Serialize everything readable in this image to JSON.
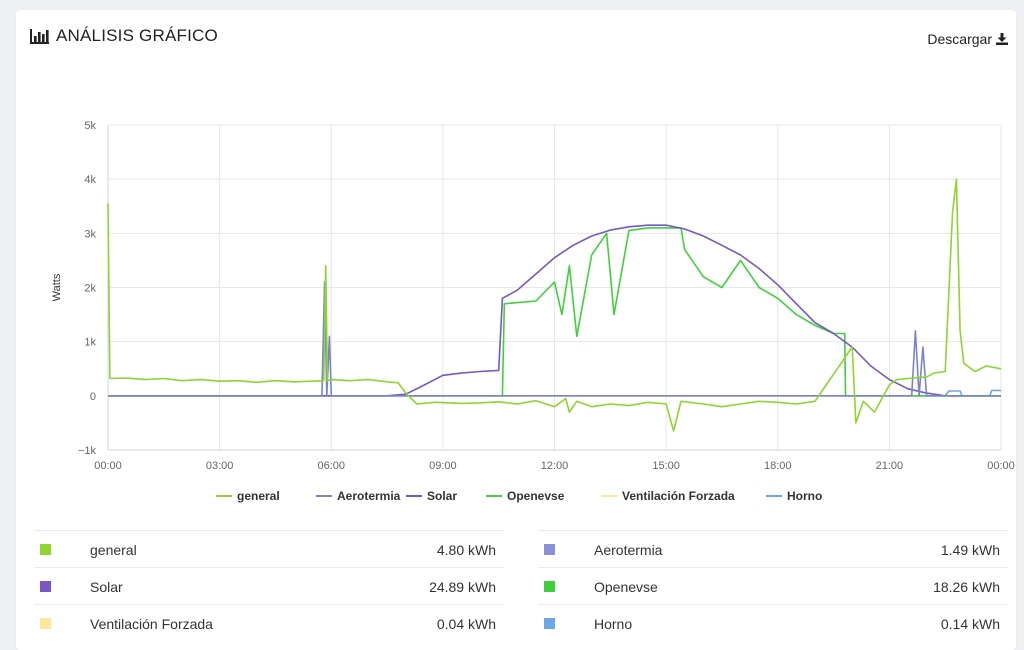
{
  "header": {
    "title": "ANÁLISIS GRÁFICO",
    "title_icon": "bar-chart-icon",
    "download_label": "Descargar",
    "download_icon": "download-icon"
  },
  "chart_data": {
    "type": "line",
    "ylabel": "Watts",
    "xlabel": "",
    "ylim": [
      -1000,
      5000
    ],
    "xlim": [
      0,
      24
    ],
    "y_ticks": [
      -1000,
      0,
      1000,
      2000,
      3000,
      4000,
      5000
    ],
    "y_tick_labels": [
      "−1k",
      "0",
      "1k",
      "2k",
      "3k",
      "4k",
      "5k"
    ],
    "x_ticks": [
      0,
      3,
      6,
      9,
      12,
      15,
      18,
      21,
      24
    ],
    "x_tick_labels": [
      "00:00",
      "03:00",
      "06:00",
      "09:00",
      "12:00",
      "15:00",
      "18:00",
      "21:00",
      "00:00"
    ],
    "grid": true,
    "legend_position": "bottom",
    "series": [
      {
        "name": "general",
        "color": "#8fd42f",
        "points": [
          [
            0,
            3550
          ],
          [
            0.05,
            320
          ],
          [
            0.5,
            330
          ],
          [
            1,
            300
          ],
          [
            1.5,
            320
          ],
          [
            2,
            280
          ],
          [
            2.5,
            300
          ],
          [
            3,
            270
          ],
          [
            3.5,
            280
          ],
          [
            4,
            250
          ],
          [
            4.5,
            280
          ],
          [
            5,
            260
          ],
          [
            5.5,
            270
          ],
          [
            5.8,
            280
          ],
          [
            5.85,
            2400
          ],
          [
            5.9,
            280
          ],
          [
            6,
            300
          ],
          [
            6.5,
            280
          ],
          [
            7,
            300
          ],
          [
            7.5,
            260
          ],
          [
            7.8,
            240
          ],
          [
            8,
            50
          ],
          [
            8.3,
            -150
          ],
          [
            8.8,
            -120
          ],
          [
            9.5,
            -140
          ],
          [
            10,
            -130
          ],
          [
            10.5,
            -110
          ],
          [
            11,
            -150
          ],
          [
            11.5,
            -90
          ],
          [
            12,
            -200
          ],
          [
            12.3,
            -50
          ],
          [
            12.4,
            -300
          ],
          [
            12.6,
            -100
          ],
          [
            13,
            -200
          ],
          [
            13.5,
            -150
          ],
          [
            14,
            -180
          ],
          [
            14.5,
            -120
          ],
          [
            15,
            -150
          ],
          [
            15.2,
            -650
          ],
          [
            15.4,
            -100
          ],
          [
            16,
            -150
          ],
          [
            16.5,
            -200
          ],
          [
            17,
            -150
          ],
          [
            17.5,
            -100
          ],
          [
            18,
            -120
          ],
          [
            18.5,
            -150
          ],
          [
            19,
            -100
          ],
          [
            19.3,
            200
          ],
          [
            19.6,
            500
          ],
          [
            19.9,
            800
          ],
          [
            20,
            900
          ],
          [
            20.1,
            -500
          ],
          [
            20.3,
            -100
          ],
          [
            20.6,
            -300
          ],
          [
            20.8,
            -50
          ],
          [
            21,
            200
          ],
          [
            21.2,
            300
          ],
          [
            21.5,
            320
          ],
          [
            22,
            350
          ],
          [
            22.2,
            420
          ],
          [
            22.5,
            450
          ],
          [
            22.7,
            3400
          ],
          [
            22.8,
            4000
          ],
          [
            22.9,
            1200
          ],
          [
            23,
            600
          ],
          [
            23.3,
            450
          ],
          [
            23.6,
            550
          ],
          [
            24,
            500
          ]
        ]
      },
      {
        "name": "Aerotermia",
        "color": "#7b83c9",
        "points": [
          [
            0,
            0
          ],
          [
            5.75,
            0
          ],
          [
            5.82,
            2100
          ],
          [
            5.88,
            0
          ],
          [
            5.95,
            1100
          ],
          [
            6.0,
            0
          ],
          [
            21.6,
            0
          ],
          [
            21.7,
            1200
          ],
          [
            21.8,
            0
          ],
          [
            21.9,
            900
          ],
          [
            22.0,
            0
          ],
          [
            24,
            0
          ]
        ]
      },
      {
        "name": "Solar",
        "color": "#7756c6",
        "points": [
          [
            0,
            0
          ],
          [
            7.5,
            0
          ],
          [
            8,
            30
          ],
          [
            8.5,
            200
          ],
          [
            9,
            380
          ],
          [
            9.5,
            420
          ],
          [
            10,
            450
          ],
          [
            10.5,
            470
          ],
          [
            10.6,
            1800
          ],
          [
            11,
            1950
          ],
          [
            11.5,
            2250
          ],
          [
            12,
            2550
          ],
          [
            12.5,
            2780
          ],
          [
            13,
            2950
          ],
          [
            13.5,
            3060
          ],
          [
            14,
            3120
          ],
          [
            14.5,
            3150
          ],
          [
            15,
            3150
          ],
          [
            15.5,
            3080
          ],
          [
            16,
            2950
          ],
          [
            16.5,
            2780
          ],
          [
            17,
            2600
          ],
          [
            17.5,
            2350
          ],
          [
            18,
            2050
          ],
          [
            18.5,
            1700
          ],
          [
            19,
            1350
          ],
          [
            19.5,
            1150
          ],
          [
            20,
            900
          ],
          [
            20.5,
            550
          ],
          [
            21,
            300
          ],
          [
            21.5,
            130
          ],
          [
            22,
            50
          ],
          [
            22.5,
            0
          ],
          [
            24,
            0
          ]
        ]
      },
      {
        "name": "Openevse",
        "color": "#3fd13a",
        "points": [
          [
            0,
            0
          ],
          [
            10.6,
            0
          ],
          [
            10.65,
            1700
          ],
          [
            11.5,
            1750
          ],
          [
            12,
            2100
          ],
          [
            12.2,
            1500
          ],
          [
            12.4,
            2400
          ],
          [
            12.6,
            1100
          ],
          [
            13,
            2600
          ],
          [
            13.4,
            3000
          ],
          [
            13.6,
            1500
          ],
          [
            14,
            3050
          ],
          [
            14.5,
            3100
          ],
          [
            15,
            3100
          ],
          [
            15.4,
            3100
          ],
          [
            15.5,
            2700
          ],
          [
            16,
            2200
          ],
          [
            16.5,
            2000
          ],
          [
            17,
            2500
          ],
          [
            17.5,
            2000
          ],
          [
            18,
            1800
          ],
          [
            18.5,
            1500
          ],
          [
            19,
            1300
          ],
          [
            19.5,
            1150
          ],
          [
            19.8,
            1150
          ],
          [
            19.82,
            0
          ],
          [
            24,
            0
          ]
        ]
      },
      {
        "name": "Ventilación Forzada",
        "color": "#ffe79a",
        "points": [
          [
            0,
            0
          ],
          [
            22.6,
            0
          ],
          [
            22.65,
            -20
          ],
          [
            22.8,
            -20
          ],
          [
            22.85,
            0
          ],
          [
            24,
            0
          ]
        ]
      },
      {
        "name": "Horno",
        "color": "#6aa8e8",
        "points": [
          [
            0,
            0
          ],
          [
            22.5,
            0
          ],
          [
            22.6,
            90
          ],
          [
            22.9,
            90
          ],
          [
            22.95,
            0
          ],
          [
            23.7,
            0
          ],
          [
            23.75,
            100
          ],
          [
            24,
            100
          ]
        ]
      }
    ]
  },
  "stats": [
    {
      "name": "general",
      "value": "4.80 kWh",
      "color": "#8fd42f"
    },
    {
      "name": "Aerotermia",
      "value": "1.49 kWh",
      "color": "#8b8fd8"
    },
    {
      "name": "Solar",
      "value": "24.89 kWh",
      "color": "#7756c6"
    },
    {
      "name": "Openevse",
      "value": "18.26 kWh",
      "color": "#3fd13a"
    },
    {
      "name": "Ventilación Forzada",
      "value": "0.04 kWh",
      "color": "#ffe79a"
    },
    {
      "name": "Horno",
      "value": "0.14 kWh",
      "color": "#6aa8e8"
    }
  ]
}
